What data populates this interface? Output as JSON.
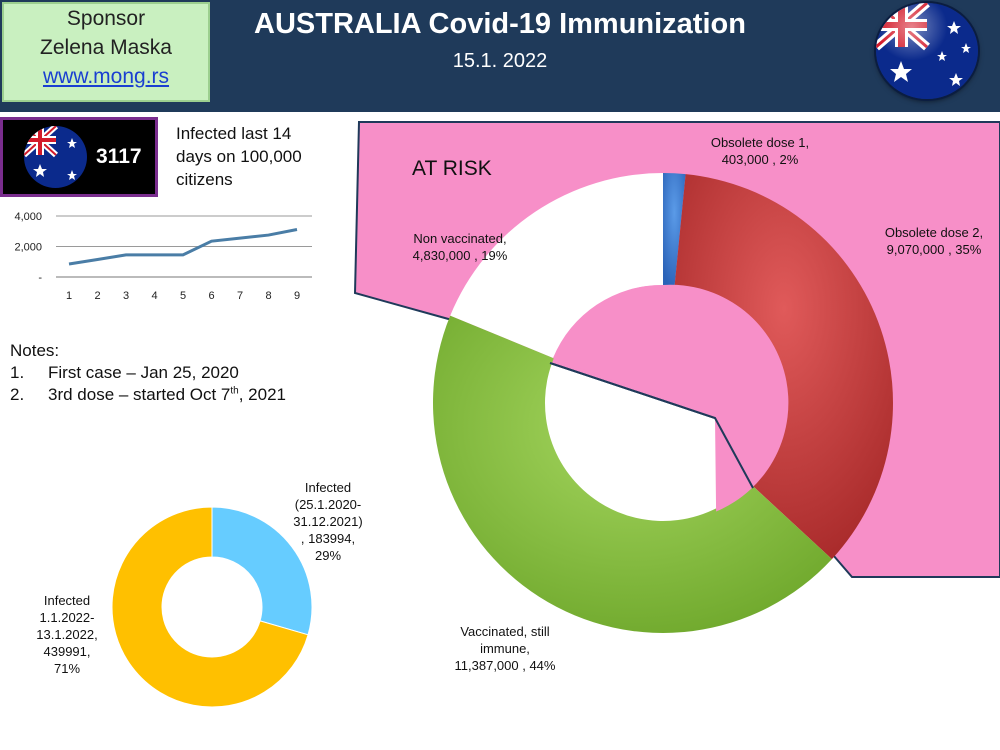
{
  "sponsor": {
    "line1": "Sponsor",
    "line2": "Zelena Maska",
    "link": "www.mong.rs"
  },
  "header": {
    "title": "AUSTRALIA Covid-19 Immunization",
    "date": "15.1. 2022"
  },
  "infection_badge": {
    "value": "3117",
    "caption": "Infected last 14 days on 100,000 citizens"
  },
  "notes": {
    "heading": "Notes:",
    "items": [
      {
        "num": "1.",
        "text": "First case – Jan 25, 2020"
      },
      {
        "num": "2.",
        "text_before": "3rd dose – started Oct 7",
        "sup": "th",
        "text_after": ", 2021"
      }
    ]
  },
  "at_risk_label": "AT RISK",
  "colors": {
    "header_bg": "#1f3a5a",
    "sponsor_bg": "#c9f0c0",
    "at_risk_pink": "#f78fc8",
    "blue_slice": "#3d7fd6",
    "red_slice": "#c93a3a",
    "green_slice": "#8cc640",
    "white_slice": "#ffffff",
    "infected_old": "#66ccff",
    "infected_new": "#ffc000",
    "line_series": "#4a7da6"
  },
  "chart_data": [
    {
      "type": "line",
      "title": "",
      "x": [
        1,
        2,
        3,
        4,
        5,
        6,
        7,
        8,
        9
      ],
      "y": [
        850,
        1150,
        1450,
        1450,
        1450,
        2350,
        2550,
        2750,
        3117
      ],
      "ylim": [
        0,
        4000
      ],
      "yticks": [
        "4,000",
        "2,000",
        "-"
      ],
      "xticks": [
        "1",
        "2",
        "3",
        "4",
        "5",
        "6",
        "7",
        "8",
        "9"
      ],
      "grid": true
    },
    {
      "type": "pie",
      "donut": true,
      "title": "",
      "slices": [
        {
          "name": "Obsolete dose 1",
          "value": 403000,
          "percent": 2,
          "label_l1": "Obsolete dose 1,",
          "label_l2": "403,000 , 2%"
        },
        {
          "name": "Obsolete dose 2",
          "value": 9070000,
          "percent": 35,
          "label_l1": "Obsolete dose 2,",
          "label_l2": "9,070,000 , 35%"
        },
        {
          "name": "Vaccinated, still immune",
          "value": 11387000,
          "percent": 44,
          "label_l1": "Vaccinated, still",
          "label_l2": "immune,",
          "label_l3": "11,387,000 , 44%"
        },
        {
          "name": "Non vaccinated",
          "value": 4830000,
          "percent": 19,
          "label_l1": "Non vaccinated,",
          "label_l2": "4,830,000 , 19%"
        }
      ]
    },
    {
      "type": "pie",
      "donut": true,
      "title": "",
      "slices": [
        {
          "name": "Infected (25.1.2020-31.12.2021)",
          "value": 183994,
          "percent": 29,
          "lines": [
            "Infected",
            "(25.1.2020-",
            "31.12.2021)",
            ", 183994,",
            "29%"
          ]
        },
        {
          "name": "Infected 1.1.2022-13.1.2022",
          "value": 439991,
          "percent": 71,
          "lines": [
            "Infected",
            "1.1.2022-",
            "13.1.2022,",
            "439991,",
            "71%"
          ]
        }
      ]
    }
  ]
}
